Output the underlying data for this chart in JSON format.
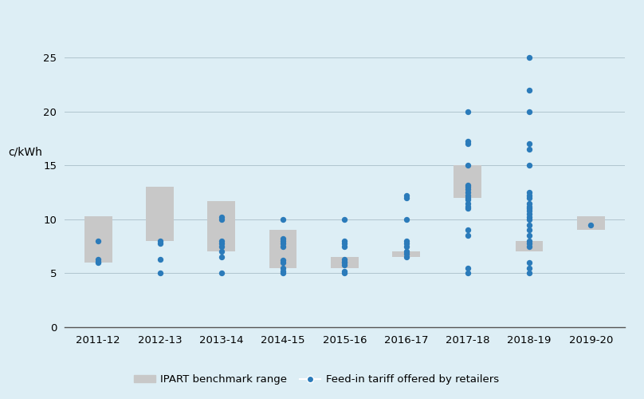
{
  "categories": [
    "2011-12",
    "2012-13",
    "2013-14",
    "2014-15",
    "2015-16",
    "2016-17",
    "2017-18",
    "2018-19",
    "2019-20"
  ],
  "bench_low": [
    6.0,
    8.0,
    7.0,
    5.5,
    5.5,
    6.5,
    12.0,
    7.0,
    9.0
  ],
  "bench_high": [
    10.3,
    13.0,
    11.7,
    9.0,
    6.5,
    7.0,
    15.0,
    8.0,
    10.3
  ],
  "dots": {
    "2011-12": [
      6.0,
      6.1,
      6.3,
      8.0
    ],
    "2012-13": [
      5.0,
      6.3,
      7.8,
      8.0
    ],
    "2013-14": [
      5.0,
      6.5,
      7.0,
      7.5,
      7.8,
      8.0,
      10.0,
      10.2
    ],
    "2014-15": [
      5.0,
      5.2,
      5.5,
      6.0,
      6.2,
      7.5,
      7.8,
      8.0,
      8.2,
      10.0
    ],
    "2015-16": [
      5.0,
      5.2,
      5.8,
      6.0,
      6.1,
      6.3,
      7.5,
      7.8,
      8.0,
      10.0
    ],
    "2016-17": [
      6.5,
      6.8,
      7.0,
      7.5,
      7.8,
      8.0,
      10.0,
      12.0,
      12.2
    ],
    "2017-18": [
      5.0,
      5.5,
      8.5,
      9.0,
      11.0,
      11.2,
      11.5,
      11.8,
      12.0,
      12.2,
      12.5,
      12.8,
      13.0,
      13.2,
      15.0,
      17.0,
      17.2,
      20.0
    ],
    "2018-19": [
      5.0,
      5.5,
      6.0,
      7.5,
      7.8,
      8.0,
      8.5,
      9.0,
      9.5,
      10.0,
      10.2,
      10.5,
      10.8,
      11.0,
      11.2,
      11.5,
      12.0,
      12.2,
      12.5,
      15.0,
      16.5,
      17.0,
      20.0,
      22.0,
      25.0
    ],
    "2019-20": [
      9.5
    ]
  },
  "bar_color": "#c8c8c8",
  "dot_color": "#2b7bba",
  "bg_color": "#ddeef5",
  "grid_color": "#b0c4ce",
  "ylabel": "c/kWh",
  "ylim": [
    0,
    27
  ],
  "yticks": [
    0,
    5,
    10,
    15,
    20,
    25
  ],
  "legend_bar_label": "IPART benchmark range",
  "legend_dot_label": "Feed-in tariff offered by retailers",
  "dot_size": 28,
  "bar_width": 0.45,
  "tick_fontsize": 9.5,
  "ylabel_fontsize": 10
}
